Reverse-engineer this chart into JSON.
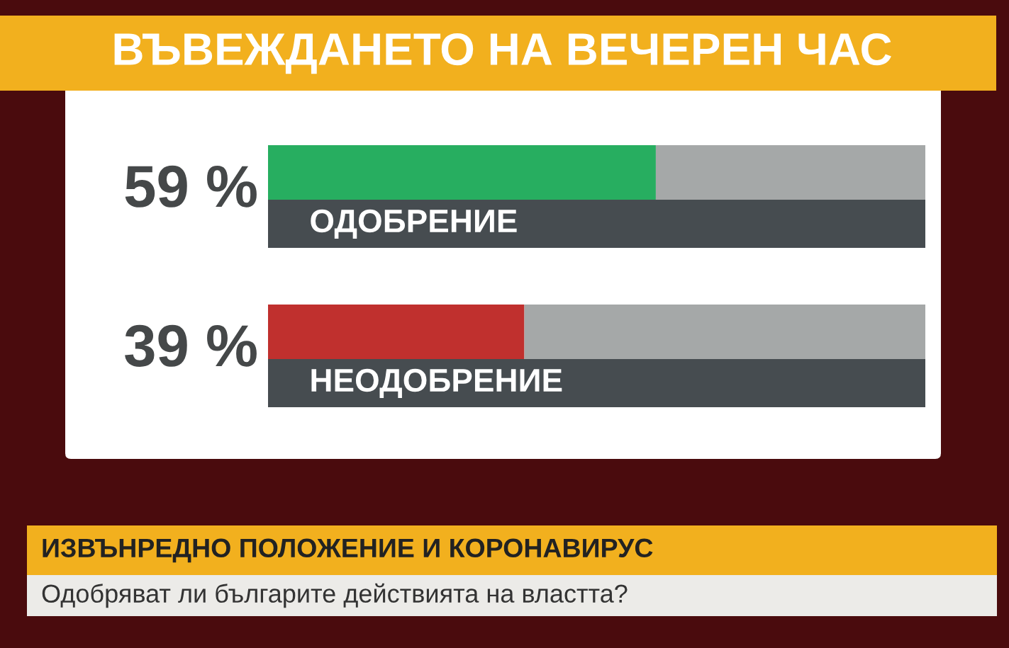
{
  "chart_data": {
    "type": "bar",
    "orientation": "horizontal",
    "stacked": true,
    "title": "ВЪВЕЖДАНЕТО НА ВЕЧЕРЕН ЧАС",
    "subtitle": "Одобряват ли българите действията на властта?",
    "annotations": [
      "ИЗВЪНРЕДНО ПОЛОЖЕНИЕ И КОРОНАВИРУС"
    ],
    "categories": [
      "ОДОБРЕНИЕ",
      "НЕОДОБРЕНИЕ"
    ],
    "series": [
      {
        "colors": [
          "#27ae60",
          "#c0302e"
        ],
        "values": [
          59,
          39
        ],
        "value_labels": [
          "59 %",
          "39 %"
        ]
      },
      {
        "color": "#a5a8a8",
        "values": [
          41,
          61
        ]
      }
    ],
    "xlim": [
      0,
      100
    ]
  }
}
